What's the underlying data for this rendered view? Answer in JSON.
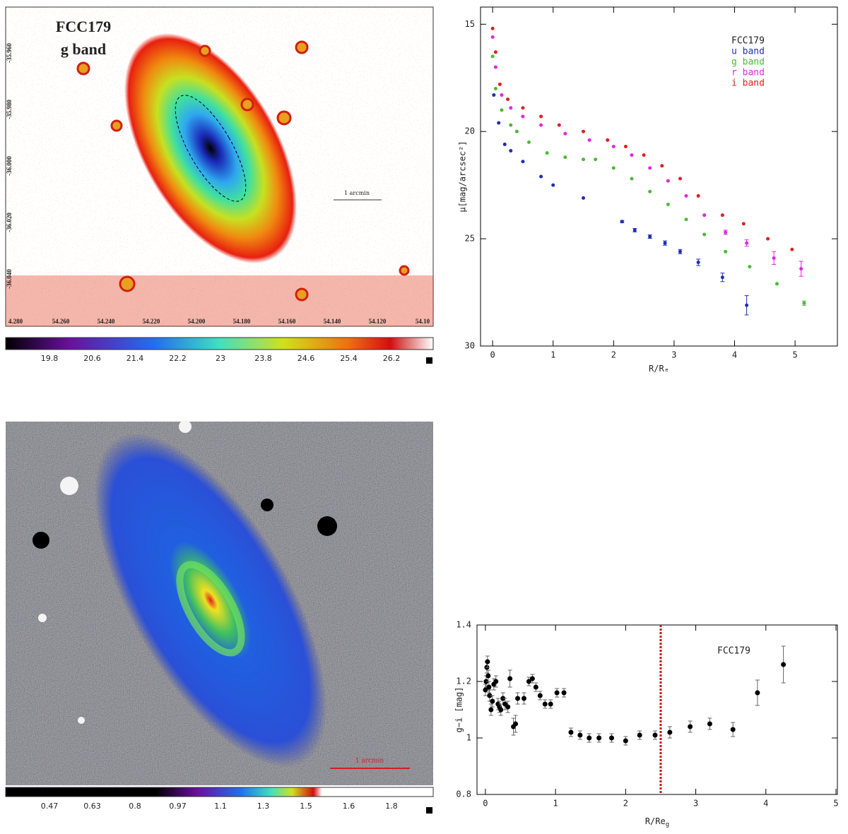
{
  "images": [
    {
      "title": "FCC179",
      "subtitle": "g band",
      "scale_label": "1 arcmin",
      "xtick_labels": [
        "4.280",
        "54.260",
        "54.240",
        "54.220",
        "54.200",
        "54.180",
        "54.160",
        "54.140",
        "54.120",
        "54.10"
      ],
      "ytick_labels": [
        "-35.960",
        "-35.980",
        "-36.000",
        "-36.020",
        "-36.040"
      ],
      "colorbar_labels": [
        "19.8",
        "20.6",
        "21.4",
        "22.2",
        "23",
        "23.8",
        "24.6",
        "25.4",
        "26.2"
      ]
    },
    {
      "scale_label": "1 arcmin",
      "colorbar_labels": [
        "0.47",
        "0.63",
        "0.8",
        "0.97",
        "1.1",
        "1.3",
        "1.5",
        "1.6",
        "1.8"
      ]
    }
  ],
  "chart_data": [
    {
      "type": "scatter",
      "annotation": "FCC179",
      "ylabel": "μ[mag/arcsec²]",
      "xlabel": "R/Rₑ",
      "xlim": [
        -0.2,
        5.7
      ],
      "ylim": [
        30,
        14.2
      ],
      "xticks": [
        0,
        1,
        2,
        3,
        4,
        5
      ],
      "yticks": [
        15,
        20,
        25,
        30
      ],
      "series": [
        {
          "name": "u band",
          "color": "#1f2fb0",
          "x": [
            0.02,
            0.1,
            0.2,
            0.3,
            0.5,
            0.8,
            1.0,
            1.5,
            2.14,
            2.35,
            2.6,
            2.85,
            3.1,
            3.4,
            3.8,
            4.2
          ],
          "values": [
            18.3,
            19.6,
            20.6,
            20.9,
            21.4,
            22.1,
            22.5,
            23.1,
            24.2,
            24.6,
            24.9,
            25.2,
            25.6,
            26.1,
            26.8,
            28.1
          ],
          "errors": [
            null,
            null,
            null,
            null,
            null,
            null,
            null,
            null,
            0.05,
            0.08,
            0.08,
            0.1,
            0.1,
            0.15,
            0.2,
            0.45
          ]
        },
        {
          "name": "g band",
          "color": "#4fb83a",
          "x": [
            0.0,
            0.05,
            0.15,
            0.3,
            0.4,
            0.6,
            0.9,
            1.2,
            1.5,
            1.7,
            2.0,
            2.3,
            2.6,
            2.9,
            3.2,
            3.5,
            3.85,
            4.25,
            4.7,
            5.15
          ],
          "values": [
            16.5,
            18.0,
            19.0,
            19.7,
            20.0,
            20.5,
            21.0,
            21.2,
            21.3,
            21.3,
            21.7,
            22.2,
            22.8,
            23.4,
            24.1,
            24.8,
            25.6,
            26.3,
            27.1,
            28.0
          ],
          "errors": [
            null,
            null,
            null,
            null,
            null,
            null,
            null,
            null,
            null,
            null,
            null,
            null,
            null,
            null,
            null,
            null,
            null,
            null,
            null,
            0.1
          ]
        },
        {
          "name": "r band",
          "color": "#e028e0",
          "x": [
            0.0,
            0.05,
            0.15,
            0.3,
            0.5,
            0.8,
            1.2,
            1.6,
            2.0,
            2.3,
            2.6,
            2.9,
            3.2,
            3.5,
            3.85,
            4.2,
            4.65,
            5.1
          ],
          "values": [
            15.6,
            17.0,
            18.3,
            18.9,
            19.3,
            19.7,
            20.1,
            20.4,
            20.7,
            21.1,
            21.7,
            22.3,
            23.0,
            23.9,
            24.7,
            25.2,
            25.9,
            26.4
          ],
          "errors": [
            null,
            null,
            null,
            null,
            null,
            null,
            null,
            null,
            null,
            null,
            null,
            null,
            null,
            null,
            0.1,
            0.15,
            0.3,
            0.35
          ]
        },
        {
          "name": "i band",
          "color": "#e02020",
          "x": [
            0.0,
            0.05,
            0.12,
            0.25,
            0.5,
            0.8,
            1.1,
            1.5,
            1.9,
            2.2,
            2.5,
            2.8,
            3.1,
            3.4,
            3.8,
            4.15,
            4.55,
            4.95
          ],
          "values": [
            15.2,
            16.3,
            17.8,
            18.5,
            18.9,
            19.3,
            19.7,
            20.0,
            20.4,
            20.7,
            21.1,
            21.6,
            22.2,
            23.0,
            23.9,
            24.3,
            25.0,
            25.5
          ],
          "errors": [
            null,
            null,
            null,
            null,
            null,
            null,
            null,
            null,
            null,
            null,
            null,
            null,
            null,
            null,
            null,
            null,
            null,
            null
          ]
        }
      ]
    },
    {
      "type": "scatter",
      "annotation": "FCC179",
      "ylabel": "g−i [mag]",
      "xlabel": "R/Re",
      "xlabel_sub": "g",
      "xlim": [
        -0.12,
        5.02
      ],
      "ylim": [
        0.8,
        1.4
      ],
      "xticks": [
        0,
        1,
        2,
        3,
        4,
        5
      ],
      "yticks": [
        0.8,
        1,
        1.2,
        1.4
      ],
      "vline": 2.5,
      "vline_color": "#cc1111",
      "series": [
        {
          "color": "#000000",
          "x": [
            0.0,
            0.01,
            0.02,
            0.03,
            0.04,
            0.05,
            0.06,
            0.08,
            0.1,
            0.12,
            0.15,
            0.18,
            0.2,
            0.22,
            0.25,
            0.28,
            0.32,
            0.35,
            0.4,
            0.43,
            0.46,
            0.55,
            0.62,
            0.67,
            0.72,
            0.78,
            0.85,
            0.93,
            1.02,
            1.12,
            1.22,
            1.35,
            1.48,
            1.62,
            1.8,
            2.0,
            2.2,
            2.42,
            2.63,
            2.92,
            3.2,
            3.53,
            3.88,
            4.25
          ],
          "values": [
            1.17,
            1.2,
            1.25,
            1.27,
            1.22,
            1.18,
            1.15,
            1.1,
            1.13,
            1.19,
            1.2,
            1.12,
            1.11,
            1.1,
            1.14,
            1.12,
            1.11,
            1.21,
            1.04,
            1.05,
            1.14,
            1.14,
            1.2,
            1.21,
            1.18,
            1.15,
            1.12,
            1.12,
            1.16,
            1.16,
            1.02,
            1.01,
            1.0,
            1.0,
            1.0,
            0.99,
            1.01,
            1.01,
            1.02,
            1.04,
            1.05,
            1.03,
            1.16,
            1.26
          ],
          "errors": [
            0.02,
            0.02,
            0.02,
            0.02,
            0.02,
            0.02,
            0.02,
            0.02,
            0.02,
            0.02,
            0.02,
            0.02,
            0.02,
            0.02,
            0.02,
            0.02,
            0.02,
            0.03,
            0.03,
            0.03,
            0.02,
            0.02,
            0.015,
            0.015,
            0.015,
            0.015,
            0.015,
            0.015,
            0.015,
            0.015,
            0.015,
            0.015,
            0.015,
            0.015,
            0.015,
            0.015,
            0.015,
            0.015,
            0.02,
            0.02,
            0.02,
            0.025,
            0.045,
            0.065
          ]
        }
      ]
    }
  ]
}
